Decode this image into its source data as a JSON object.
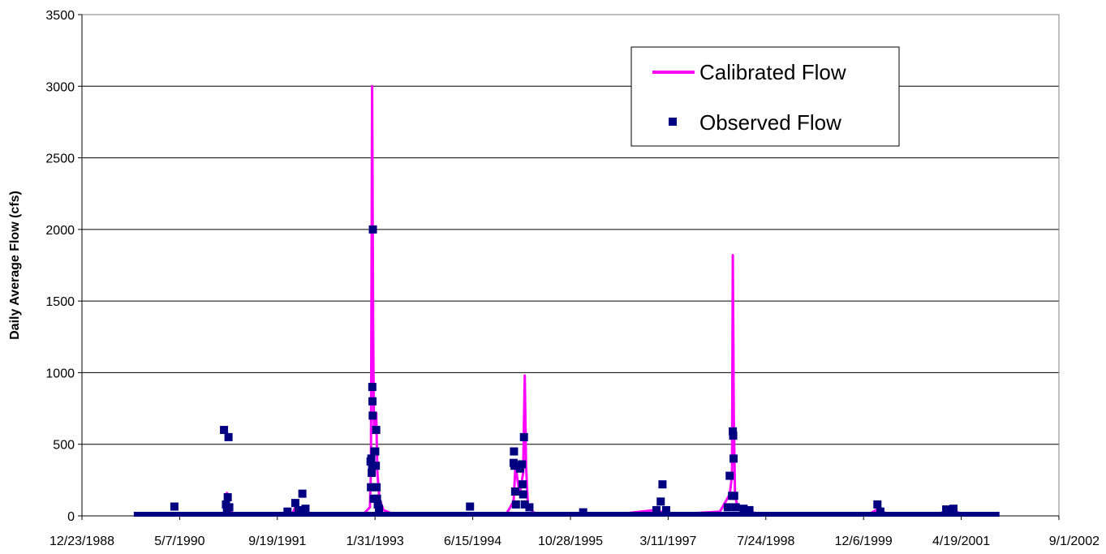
{
  "chart_data": {
    "type": "line",
    "title": "",
    "xlabel": "",
    "ylabel": "Daily Average Flow (cfs)",
    "xlim": [
      "12/23/1988",
      "9/1/2002"
    ],
    "ylim": [
      0,
      3500
    ],
    "x_tick_labels": [
      "12/23/1988",
      "5/7/1990",
      "9/19/1991",
      "1/31/1993",
      "6/15/1994",
      "10/28/1995",
      "3/11/1997",
      "7/24/1998",
      "12/6/1999",
      "4/19/2001",
      "9/1/2002"
    ],
    "y_tick_labels": [
      "0",
      "500",
      "1000",
      "1500",
      "2000",
      "2500",
      "3000",
      "3500"
    ],
    "y_ticks": [
      0,
      500,
      1000,
      1500,
      2000,
      2500,
      3000,
      3500
    ],
    "grid": "horizontal",
    "legend_position": "top-right",
    "series": [
      {
        "name": "Calibrated Flow",
        "kind": "line",
        "color": "#ff00ff",
        "points": [
          [
            "1989-10-01",
            5
          ],
          [
            "1990-04-20",
            8
          ],
          [
            "1990-09-01",
            5
          ],
          [
            "1990-12-25",
            10
          ],
          [
            "1991-01-04",
            160
          ],
          [
            "1991-01-12",
            40
          ],
          [
            "1991-02-15",
            10
          ],
          [
            "1991-07-01",
            5
          ],
          [
            "1991-12-05",
            15
          ],
          [
            "1991-12-20",
            60
          ],
          [
            "1992-01-20",
            20
          ],
          [
            "1992-06-01",
            8
          ],
          [
            "1992-12-01",
            10
          ],
          [
            "1993-01-05",
            60
          ],
          [
            "1993-01-10",
            300
          ],
          [
            "1993-01-16",
            3000
          ],
          [
            "1993-01-21",
            1350
          ],
          [
            "1993-01-25",
            600
          ],
          [
            "1993-02-01",
            710
          ],
          [
            "1993-02-06",
            720
          ],
          [
            "1993-02-12",
            300
          ],
          [
            "1993-02-22",
            120
          ],
          [
            "1993-03-15",
            40
          ],
          [
            "1993-05-01",
            15
          ],
          [
            "1993-12-01",
            8
          ],
          [
            "1994-06-01",
            10
          ],
          [
            "1994-12-01",
            8
          ],
          [
            "1995-01-10",
            100
          ],
          [
            "1995-01-20",
            350
          ],
          [
            "1995-02-10",
            150
          ],
          [
            "1995-02-28",
            300
          ],
          [
            "1995-03-08",
            980
          ],
          [
            "1995-03-15",
            350
          ],
          [
            "1995-03-25",
            60
          ],
          [
            "1995-05-01",
            15
          ],
          [
            "1995-12-01",
            10
          ],
          [
            "1996-06-01",
            8
          ],
          [
            "1997-01-01",
            40
          ],
          [
            "1997-02-01",
            30
          ],
          [
            "1997-04-01",
            10
          ],
          [
            "1997-12-01",
            30
          ],
          [
            "1998-01-20",
            150
          ],
          [
            "1998-02-01",
            280
          ],
          [
            "1998-02-05",
            1820
          ],
          [
            "1998-02-10",
            700
          ],
          [
            "1998-02-16",
            150
          ],
          [
            "1998-03-01",
            60
          ],
          [
            "1998-05-01",
            30
          ],
          [
            "1998-07-01",
            10
          ],
          [
            "1999-01-01",
            8
          ],
          [
            "1999-06-01",
            5
          ],
          [
            "2000-01-01",
            10
          ],
          [
            "2000-02-20",
            50
          ],
          [
            "2000-04-01",
            15
          ],
          [
            "2000-09-01",
            5
          ],
          [
            "2001-01-01",
            20
          ],
          [
            "2001-03-01",
            40
          ],
          [
            "2001-05-01",
            10
          ],
          [
            "2001-10-15",
            5
          ]
        ]
      },
      {
        "name": "Observed Flow",
        "kind": "scatter",
        "color": "#000080",
        "points": [
          [
            "1990-04-10",
            65
          ],
          [
            "1990-12-20",
            600
          ],
          [
            "1990-12-30",
            80
          ],
          [
            "1991-01-04",
            30
          ],
          [
            "1991-01-08",
            130
          ],
          [
            "1991-01-12",
            550
          ],
          [
            "1991-01-16",
            60
          ],
          [
            "1991-11-10",
            30
          ],
          [
            "1991-12-20",
            90
          ],
          [
            "1992-01-05",
            40
          ],
          [
            "1992-01-25",
            155
          ],
          [
            "1992-02-10",
            50
          ],
          [
            "1993-01-08",
            380
          ],
          [
            "1993-01-10",
            200
          ],
          [
            "1993-01-12",
            400
          ],
          [
            "1993-01-14",
            300
          ],
          [
            "1993-01-16",
            350
          ],
          [
            "1993-01-17",
            900
          ],
          [
            "1993-01-18",
            800
          ],
          [
            "1993-01-19",
            700
          ],
          [
            "1993-01-20",
            2000
          ],
          [
            "1993-01-24",
            120
          ],
          [
            "1993-01-28",
            450
          ],
          [
            "1993-02-01",
            450
          ],
          [
            "1993-02-04",
            350
          ],
          [
            "1993-02-06",
            600
          ],
          [
            "1993-02-08",
            200
          ],
          [
            "1993-02-10",
            120
          ],
          [
            "1993-02-14",
            80
          ],
          [
            "1993-02-20",
            50
          ],
          [
            "1994-06-01",
            65
          ],
          [
            "1995-01-10",
            370
          ],
          [
            "1995-01-12",
            450
          ],
          [
            "1995-01-15",
            350
          ],
          [
            "1995-01-18",
            170
          ],
          [
            "1995-01-22",
            80
          ],
          [
            "1995-02-12",
            330
          ],
          [
            "1995-02-22",
            360
          ],
          [
            "1995-02-25",
            220
          ],
          [
            "1995-02-28",
            150
          ],
          [
            "1995-03-04",
            550
          ],
          [
            "1995-03-08",
            80
          ],
          [
            "1995-04-01",
            60
          ],
          [
            "1996-01-01",
            25
          ],
          [
            "1997-01-10",
            40
          ],
          [
            "1997-02-01",
            100
          ],
          [
            "1997-02-10",
            220
          ],
          [
            "1997-03-01",
            40
          ],
          [
            "1998-01-10",
            60
          ],
          [
            "1998-01-20",
            280
          ],
          [
            "1998-02-01",
            140
          ],
          [
            "1998-02-05",
            590
          ],
          [
            "1998-02-07",
            560
          ],
          [
            "1998-02-09",
            400
          ],
          [
            "1998-02-12",
            140
          ],
          [
            "1998-02-20",
            60
          ],
          [
            "1998-04-01",
            50
          ],
          [
            "1998-05-01",
            40
          ],
          [
            "2000-02-15",
            80
          ],
          [
            "2000-03-01",
            30
          ],
          [
            "2001-02-01",
            45
          ],
          [
            "2001-03-10",
            50
          ]
        ]
      }
    ]
  }
}
